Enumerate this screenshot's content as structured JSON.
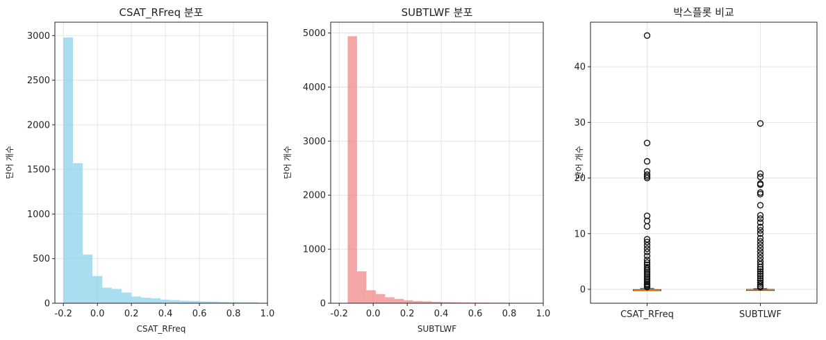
{
  "chart_data": [
    {
      "type": "histogram",
      "title": "CSAT_RFreq 분포",
      "xlabel": "CSAT_RFreq",
      "ylabel": "단어 개수",
      "color": "#87CEEB",
      "xlim": [
        -0.25,
        1.0
      ],
      "ylim": [
        0,
        3150
      ],
      "xticks": [
        "-0.2",
        "0.0",
        "0.2",
        "0.4",
        "0.6",
        "0.8",
        "1.0"
      ],
      "xtick_values": [
        -0.2,
        0.0,
        0.2,
        0.4,
        0.6,
        0.8,
        1.0
      ],
      "yticks": [
        "0",
        "500",
        "1000",
        "1500",
        "2000",
        "2500",
        "3000"
      ],
      "ytick_values": [
        0,
        500,
        1000,
        1500,
        2000,
        2500,
        3000
      ],
      "bin_edges": [
        -0.2,
        -0.143,
        -0.086,
        -0.029,
        0.029,
        0.086,
        0.143,
        0.2,
        0.257,
        0.314,
        0.371,
        0.429,
        0.486,
        0.543,
        0.6,
        0.657,
        0.714,
        0.771,
        0.829,
        0.886,
        0.943
      ],
      "counts": [
        2980,
        1570,
        545,
        305,
        175,
        160,
        120,
        75,
        62,
        55,
        40,
        35,
        28,
        25,
        20,
        18,
        15,
        12,
        10,
        10
      ],
      "grid": true
    },
    {
      "type": "histogram",
      "title": "SUBTLWF 분포",
      "xlabel": "SUBTLWF",
      "ylabel": "단어 개수",
      "color": "#F08080",
      "xlim": [
        -0.25,
        1.0
      ],
      "ylim": [
        0,
        5200
      ],
      "xticks": [
        "-0.2",
        "0.0",
        "0.2",
        "0.4",
        "0.6",
        "0.8",
        "1.0"
      ],
      "xtick_values": [
        -0.2,
        0.0,
        0.2,
        0.4,
        0.6,
        0.8,
        1.0
      ],
      "yticks": [
        "0",
        "1000",
        "2000",
        "3000",
        "4000",
        "5000"
      ],
      "ytick_values": [
        0,
        1000,
        2000,
        3000,
        4000,
        5000
      ],
      "bin_edges": [
        -0.15,
        -0.095,
        -0.04,
        0.015,
        0.07,
        0.125,
        0.18,
        0.235,
        0.29,
        0.345,
        0.4,
        0.455,
        0.51,
        0.565,
        0.62,
        0.675,
        0.73,
        0.785,
        0.84,
        0.895,
        0.95
      ],
      "counts": [
        4940,
        590,
        240,
        170,
        110,
        80,
        55,
        40,
        35,
        25,
        20,
        18,
        15,
        12,
        12,
        10,
        10,
        8,
        8,
        8
      ],
      "grid": true
    },
    {
      "type": "box",
      "title": "박스플롯 비교",
      "ylabel": "단어 개수",
      "categories": [
        "CSAT_RFreq",
        "SUBTLWF"
      ],
      "ylim": [
        -2.5,
        48
      ],
      "yticks": [
        "0",
        "10",
        "20",
        "30",
        "40"
      ],
      "ytick_values": [
        0,
        10,
        20,
        30,
        40
      ],
      "median_color": "#FF7F0E",
      "boxes": [
        {
          "name": "CSAT_RFreq",
          "q1": -0.2,
          "median": -0.15,
          "q3": -0.05,
          "whisker_low": -0.2,
          "whisker_high": 0.15,
          "outliers": [
            45.6,
            26.3,
            23.0,
            21.2,
            20.6,
            20.3,
            20.0,
            13.2,
            12.3,
            11.3,
            9.0,
            8.5,
            7.9,
            7.3,
            6.7,
            6.0,
            5.3,
            4.8,
            4.4,
            4.0,
            3.7,
            3.4,
            3.1,
            2.8,
            2.5,
            2.2,
            1.9,
            1.6,
            1.3,
            1.0,
            0.8,
            0.6,
            0.4
          ]
        },
        {
          "name": "SUBTLWF",
          "q1": -0.15,
          "median": -0.1,
          "q3": -0.02,
          "whisker_low": -0.15,
          "whisker_high": 0.1,
          "outliers": [
            29.8,
            20.8,
            20.2,
            19.0,
            18.8,
            17.4,
            17.1,
            15.1,
            13.3,
            12.7,
            12.0,
            11.2,
            10.6,
            10.0,
            9.2,
            8.6,
            8.0,
            7.4,
            6.8,
            6.2,
            5.6,
            5.0,
            4.5,
            4.0,
            3.6,
            3.2,
            2.8,
            2.4,
            2.0,
            1.6,
            1.2,
            0.9,
            0.6,
            0.4
          ]
        }
      ],
      "grid": true
    }
  ]
}
